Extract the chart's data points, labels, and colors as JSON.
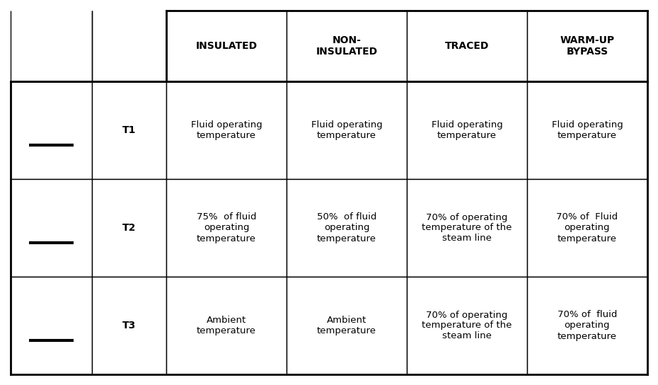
{
  "col_headers": [
    "",
    "",
    "INSULATED",
    "NON-\nINSULATED",
    "TRACED",
    "WARM-UP\nBYPASS"
  ],
  "rows": [
    {
      "label": "T1",
      "insulated": "Fluid operating\ntemperature",
      "non_insulated": "Fluid operating\ntemperature",
      "traced": "Fluid operating\ntemperature",
      "warmup": "Fluid operating\ntemperature"
    },
    {
      "label": "T2",
      "insulated": "75%  of fluid\noperating\ntemperature",
      "non_insulated": "50%  of fluid\noperating\ntemperature",
      "traced": "70% of operating\ntemperature of the\nsteam line",
      "warmup": "70% of  Fluid\noperating\ntemperature"
    },
    {
      "label": "T3",
      "insulated": "Ambient\ntemperature",
      "non_insulated": "Ambient\ntemperature",
      "traced": "70% of operating\ntemperature of the\nsteam line",
      "warmup": "70% of  fluid\noperating\ntemperature"
    }
  ],
  "background_color": "#ffffff",
  "border_color": "#000000",
  "text_color": "#000000",
  "header_font_size": 10,
  "cell_font_size": 9.5,
  "label_font_size": 10
}
